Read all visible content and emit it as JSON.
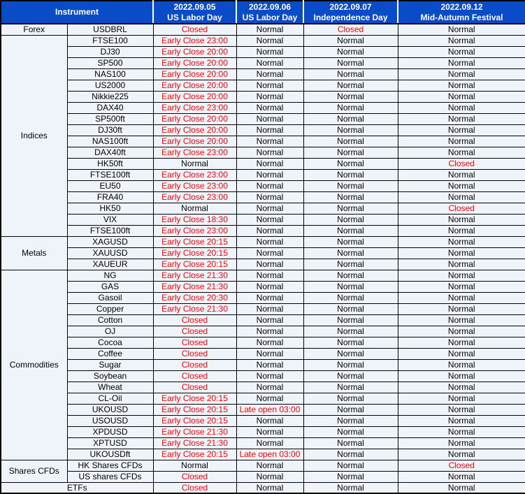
{
  "colors": {
    "header_bg": "#0A4CC8",
    "header_text": "#FFFFFF",
    "row_bg": "#EFF4FB",
    "border": "#000000",
    "text": "#000000",
    "status_special": "#FF0000"
  },
  "normal_value": "Normal",
  "header": {
    "instrument_label": "Instrument",
    "columns": [
      {
        "date": "2022.09.05",
        "holiday": "US Labor Day"
      },
      {
        "date": "2022.09.06",
        "holiday": "US Labor Day"
      },
      {
        "date": "2022.09.07",
        "holiday": "Independence Day"
      },
      {
        "date": "2022.09.12",
        "holiday": "Mid-Autumn Festival"
      }
    ]
  },
  "groups": [
    {
      "category": "Forex",
      "rows": [
        {
          "instrument": "USDBRL",
          "statuses": [
            "Closed",
            "Normal",
            "Closed",
            "Normal"
          ]
        }
      ]
    },
    {
      "category": "Indices",
      "rows": [
        {
          "instrument": "FTSE100",
          "statuses": [
            "Early Close 23:00",
            "Normal",
            "Normal",
            "Normal"
          ]
        },
        {
          "instrument": "DJ30",
          "statuses": [
            "Early Close 20:00",
            "Normal",
            "Normal",
            "Normal"
          ]
        },
        {
          "instrument": "SP500",
          "statuses": [
            "Early Close 20:00",
            "Normal",
            "Normal",
            "Normal"
          ]
        },
        {
          "instrument": "NAS100",
          "statuses": [
            "Early Close 20:00",
            "Normal",
            "Normal",
            "Normal"
          ]
        },
        {
          "instrument": "US2000",
          "statuses": [
            "Early Close 20:00",
            "Normal",
            "Normal",
            "Normal"
          ]
        },
        {
          "instrument": "Nikkie225",
          "statuses": [
            "Early Close 20:00",
            "Normal",
            "Normal",
            "Normal"
          ]
        },
        {
          "instrument": "DAX40",
          "statuses": [
            "Early Close 23:00",
            "Normal",
            "Normal",
            "Normal"
          ]
        },
        {
          "instrument": "SP500ft",
          "statuses": [
            "Early Close 20:00",
            "Normal",
            "Normal",
            "Normal"
          ]
        },
        {
          "instrument": "DJ30ft",
          "statuses": [
            "Early Close 20:00",
            "Normal",
            "Normal",
            "Normal"
          ]
        },
        {
          "instrument": "NAS100ft",
          "statuses": [
            "Early Close 20:00",
            "Normal",
            "Normal",
            "Normal"
          ]
        },
        {
          "instrument": "DAX40ft",
          "statuses": [
            "Early Close 23:00",
            "Normal",
            "Normal",
            "Normal"
          ]
        },
        {
          "instrument": "HK50ft",
          "statuses": [
            "Normal",
            "Normal",
            "Normal",
            "Closed"
          ]
        },
        {
          "instrument": "FTSE100ft",
          "statuses": [
            "Early Close 23:00",
            "Normal",
            "Normal",
            "Normal"
          ]
        },
        {
          "instrument": "EU50",
          "statuses": [
            "Early Close 23:00",
            "Normal",
            "Normal",
            "Normal"
          ]
        },
        {
          "instrument": "FRA40",
          "statuses": [
            "Early Close 23:00",
            "Normal",
            "Normal",
            "Normal"
          ]
        },
        {
          "instrument": "HK50",
          "statuses": [
            "Normal",
            "Normal",
            "Normal",
            "Closed"
          ]
        },
        {
          "instrument": "VIX",
          "statuses": [
            "Early Close 18:30",
            "Normal",
            "Normal",
            "Normal"
          ]
        },
        {
          "instrument": "FTSE100ft",
          "statuses": [
            "Early Close 23:00",
            "Normal",
            "Normal",
            "Normal"
          ]
        }
      ]
    },
    {
      "category": "Metals",
      "rows": [
        {
          "instrument": "XAGUSD",
          "statuses": [
            "Early Close 20:15",
            "Normal",
            "Normal",
            "Normal"
          ]
        },
        {
          "instrument": "XAUUSD",
          "statuses": [
            "Early Close 20:15",
            "Normal",
            "Normal",
            "Normal"
          ]
        },
        {
          "instrument": "XAUEUR",
          "statuses": [
            "Early Close 20:15",
            "Normal",
            "Normal",
            "Normal"
          ]
        }
      ]
    },
    {
      "category": "Commodities",
      "rows": [
        {
          "instrument": "NG",
          "statuses": [
            "Early Close 21:30",
            "Normal",
            "Normal",
            "Normal"
          ]
        },
        {
          "instrument": "GAS",
          "statuses": [
            "Early Close 21:30",
            "Normal",
            "Normal",
            "Normal"
          ]
        },
        {
          "instrument": "Gasoil",
          "statuses": [
            "Early Close 20:30",
            "Normal",
            "Normal",
            "Normal"
          ]
        },
        {
          "instrument": "Copper",
          "statuses": [
            "Early Close 21:30",
            "Normal",
            "Normal",
            "Normal"
          ]
        },
        {
          "instrument": "Cotton",
          "statuses": [
            "Closed",
            "Normal",
            "Normal",
            "Normal"
          ]
        },
        {
          "instrument": "OJ",
          "statuses": [
            "Closed",
            "Normal",
            "Normal",
            "Normal"
          ]
        },
        {
          "instrument": "Cocoa",
          "statuses": [
            "Closed",
            "Normal",
            "Normal",
            "Normal"
          ]
        },
        {
          "instrument": "Coffee",
          "statuses": [
            "Closed",
            "Normal",
            "Normal",
            "Normal"
          ]
        },
        {
          "instrument": "Sugar",
          "statuses": [
            "Closed",
            "Normal",
            "Normal",
            "Normal"
          ]
        },
        {
          "instrument": "Soybean",
          "statuses": [
            "Closed",
            "Normal",
            "Normal",
            "Normal"
          ]
        },
        {
          "instrument": "Wheat",
          "statuses": [
            "Closed",
            "Normal",
            "Normal",
            "Normal"
          ]
        },
        {
          "instrument": "CL-Oil",
          "statuses": [
            "Early Close 20:15",
            "Normal",
            "Normal",
            "Normal"
          ]
        },
        {
          "instrument": "UKOUSD",
          "statuses": [
            "Early Close 20:15",
            "Late open 03:00",
            "Normal",
            "Normal"
          ]
        },
        {
          "instrument": "USOUSD",
          "statuses": [
            "Early Close 20:15",
            "Normal",
            "Normal",
            "Normal"
          ]
        },
        {
          "instrument": "XPDUSD",
          "statuses": [
            "Early Close 21:30",
            "Normal",
            "Normal",
            "Normal"
          ]
        },
        {
          "instrument": "XPTUSD",
          "statuses": [
            "Early Close 21:30",
            "Normal",
            "Normal",
            "Normal"
          ]
        },
        {
          "instrument": "UKOUSDft",
          "statuses": [
            "Early Close 20:15",
            "Late open 03:00",
            "Normal",
            "Normal"
          ]
        }
      ]
    },
    {
      "category": "Shares CFDs",
      "rows": [
        {
          "instrument": "HK Shares CFDs",
          "statuses": [
            "Normal",
            "Normal",
            "Normal",
            "Closed"
          ]
        },
        {
          "instrument": "US shares CFDs",
          "statuses": [
            "Closed",
            "Normal",
            "Normal",
            "Normal"
          ]
        }
      ]
    },
    {
      "category": "ETFs",
      "merged_with_instrument": true,
      "rows": [
        {
          "statuses": [
            "Closed",
            "Normal",
            "Normal",
            "Normal"
          ]
        }
      ]
    }
  ]
}
